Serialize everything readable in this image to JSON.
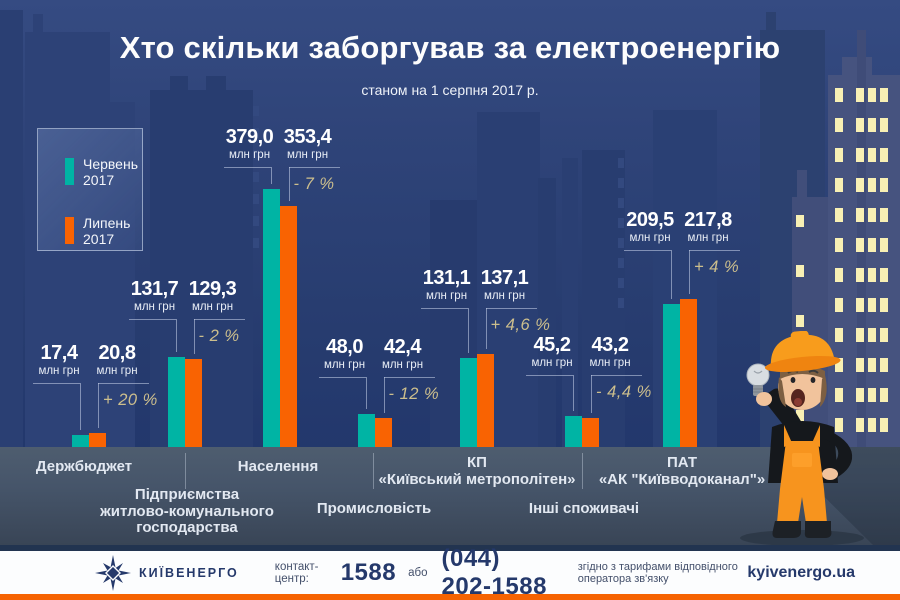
{
  "title": "Хто скільки заборгував за електроенергію",
  "subtitle": "станом на 1 серпня 2017 р.",
  "legend": {
    "items": [
      {
        "label": "Червень\n2017",
        "color": "#00b4a4"
      },
      {
        "label": "Липень\n2017",
        "color": "#f96302"
      }
    ]
  },
  "chart_data": {
    "type": "bar",
    "title": "Хто скільки заборгував за електроенергію",
    "subtitle": "станом на 1 серпня 2017 р.",
    "unit": "млн грн",
    "ylim": [
      0,
      400
    ],
    "grid": false,
    "legend_position": "upper-left",
    "series": [
      {
        "name": "Червень 2017",
        "color": "#00b4a4"
      },
      {
        "name": "Липень 2017",
        "color": "#f96302"
      }
    ],
    "groups": [
      {
        "category": "Держбюджет",
        "values": [
          17.4,
          20.8
        ],
        "value_labels": [
          "17,4",
          "20,8"
        ],
        "change": "+ 20 %"
      },
      {
        "category": "Підприємства\nжитлово-комунального\nгосподарства",
        "values": [
          131.7,
          129.3
        ],
        "value_labels": [
          "131,7",
          "129,3"
        ],
        "change": "- 2 %"
      },
      {
        "category": "Населення",
        "values": [
          379.0,
          353.4
        ],
        "value_labels": [
          "379,0",
          "353,4"
        ],
        "change": "- 7 %"
      },
      {
        "category": "Промисловість",
        "values": [
          48.0,
          42.4
        ],
        "value_labels": [
          "48,0",
          "42,4"
        ],
        "change": "- 12 %"
      },
      {
        "category": "КП\n«Київський метрополітен»",
        "values": [
          131.1,
          137.1
        ],
        "value_labels": [
          "131,1",
          "137,1"
        ],
        "change": "+ 4,6 %"
      },
      {
        "category": "Інші споживачі",
        "values": [
          45.2,
          43.2
        ],
        "value_labels": [
          "45,2",
          "43,2"
        ],
        "change": "- 4,4 %"
      },
      {
        "category": "ПАТ\n«АК \"Київводоканал\"»",
        "values": [
          209.5,
          217.8
        ],
        "value_labels": [
          "209,5",
          "217,8"
        ],
        "change": "+ 4 %"
      }
    ]
  },
  "footer": {
    "brand": "КИЇВЕНЕРГО",
    "contact_label": "контакт-центр:",
    "short_number": "1588",
    "or_label": "або",
    "phone": "(044) 202-1588",
    "tariff_note": "згідно з тарифами відповідного оператора зв'язку",
    "website": "kyivenergo.ua"
  },
  "colors": {
    "june_bar": "#00b4a4",
    "july_bar": "#f96302",
    "percent_text": "#cdbf8d",
    "background_top": "#354b82",
    "background_bottom": "#1e336a",
    "ground": "#46556a",
    "footer_accent": "#f66302",
    "brand_navy": "#25396b",
    "lit_window": "#f8f0b4"
  }
}
